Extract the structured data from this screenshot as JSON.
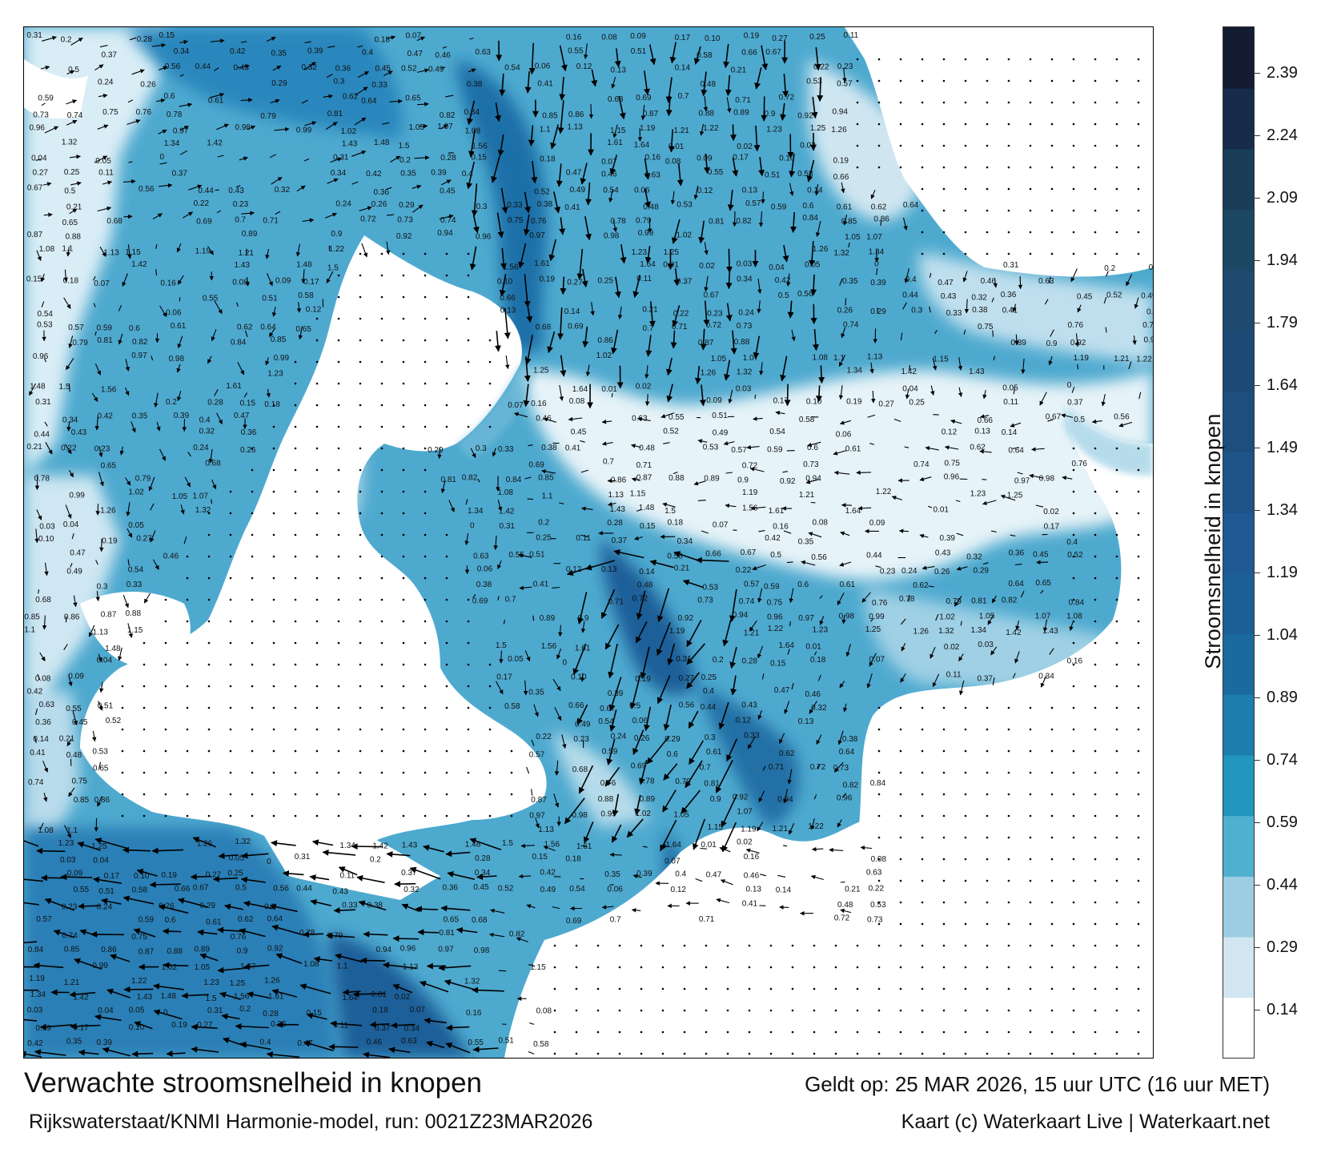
{
  "title": "Verwachte stroomsnelheid in knopen",
  "subtitle": "Rijkswaterstaat/KNMI Harmonie-model, run: 0021Z23MAR2026",
  "valid_time": "Geldt op: 25 MAR 2026, 15 uur UTC (16 uur MET)",
  "credit": "Kaart (c) Waterkaart Live | Waterkaart.net",
  "colorbar": {
    "label": "Stroomsnelheid in knopen",
    "ticks": [
      "2.39",
      "2.24",
      "2.09",
      "1.94",
      "1.79",
      "1.64",
      "1.49",
      "1.34",
      "1.19",
      "1.04",
      "0.89",
      "0.74",
      "0.59",
      "0.44",
      "0.29",
      "0.14"
    ],
    "colors": [
      "#ffffff",
      "#d2e6f1",
      "#9ccde2",
      "#4fb0d0",
      "#2296bf",
      "#1c7eae",
      "#1a6aa0",
      "#1c5f96",
      "#1f5a92",
      "#1e5487",
      "#1d4e7e",
      "#1c4a77",
      "#1d4a6e",
      "#1c4863",
      "#1a3d5a",
      "#172c4b",
      "#141c33"
    ]
  },
  "map": {
    "background_land": "#ffffff",
    "arrow_color": "#000000",
    "speed_labels": [
      {
        "v": "0.31"
      },
      {
        "v": "0.2"
      },
      {
        "v": "0.28"
      },
      {
        "v": "0.15"
      },
      {
        "v": "0.18"
      },
      {
        "v": "0.07"
      },
      {
        "v": "0.16"
      },
      {
        "v": "0.08"
      },
      {
        "v": "0.09"
      },
      {
        "v": "0.17"
      },
      {
        "v": "0.10"
      },
      {
        "v": "0.19"
      },
      {
        "v": "0.27"
      },
      {
        "v": "0.25"
      },
      {
        "v": "0.11"
      },
      {
        "v": "0.37"
      },
      {
        "v": "0.34"
      },
      {
        "v": "0.42"
      },
      {
        "v": "0.35"
      },
      {
        "v": "0.39"
      },
      {
        "v": "0.4"
      },
      {
        "v": "0.47"
      },
      {
        "v": "0.46"
      },
      {
        "v": "0.63"
      },
      {
        "v": "0.55"
      },
      {
        "v": "0.51"
      },
      {
        "v": "0.58"
      },
      {
        "v": "0.66"
      },
      {
        "v": "0.67"
      },
      {
        "v": "0.5"
      },
      {
        "v": "0.56"
      },
      {
        "v": "0.44"
      },
      {
        "v": "0.43"
      },
      {
        "v": "0.32"
      },
      {
        "v": "0.36"
      },
      {
        "v": "0.45"
      },
      {
        "v": "0.52"
      },
      {
        "v": "0.49"
      },
      {
        "v": "0.54"
      },
      {
        "v": "0.06"
      },
      {
        "v": "0.12"
      },
      {
        "v": "0.13"
      },
      {
        "v": "0.14"
      },
      {
        "v": "0.21"
      },
      {
        "v": "0.22"
      },
      {
        "v": "0.23"
      },
      {
        "v": "0.24"
      },
      {
        "v": "0.26"
      },
      {
        "v": "0.29"
      },
      {
        "v": "0.3"
      },
      {
        "v": "0.33"
      },
      {
        "v": "0.38"
      },
      {
        "v": "0.41"
      },
      {
        "v": "0.48"
      },
      {
        "v": "0.53"
      },
      {
        "v": "0.57"
      },
      {
        "v": "0.59"
      },
      {
        "v": "0.6"
      },
      {
        "v": "0.61"
      },
      {
        "v": "0.62"
      },
      {
        "v": "0.64"
      },
      {
        "v": "0.65"
      },
      {
        "v": "0.68"
      },
      {
        "v": "0.69"
      },
      {
        "v": "0.7"
      },
      {
        "v": "0.71"
      },
      {
        "v": "0.72"
      },
      {
        "v": "0.73"
      },
      {
        "v": "0.74"
      },
      {
        "v": "0.75"
      },
      {
        "v": "0.76"
      },
      {
        "v": "0.78"
      },
      {
        "v": "0.79"
      },
      {
        "v": "0.81"
      },
      {
        "v": "0.82"
      },
      {
        "v": "0.84"
      },
      {
        "v": "0.85"
      },
      {
        "v": "0.86"
      },
      {
        "v": "0.87"
      },
      {
        "v": "0.88"
      },
      {
        "v": "0.89"
      },
      {
        "v": "0.9"
      },
      {
        "v": "0.92"
      },
      {
        "v": "0.94"
      },
      {
        "v": "0.96"
      },
      {
        "v": "0.97"
      },
      {
        "v": "0.98"
      },
      {
        "v": "0.99"
      },
      {
        "v": "1.02"
      },
      {
        "v": "1.05"
      },
      {
        "v": "1.07"
      },
      {
        "v": "1.08"
      },
      {
        "v": "1.1"
      },
      {
        "v": "1.13"
      },
      {
        "v": "1.15"
      },
      {
        "v": "1.19"
      },
      {
        "v": "1.21"
      },
      {
        "v": "1.22"
      },
      {
        "v": "1.23"
      },
      {
        "v": "1.25"
      },
      {
        "v": "1.26"
      },
      {
        "v": "1.32"
      },
      {
        "v": "1.34"
      },
      {
        "v": "1.42"
      },
      {
        "v": "1.43"
      },
      {
        "v": "1.48"
      },
      {
        "v": "1.5"
      },
      {
        "v": "1.56"
      },
      {
        "v": "1.61"
      },
      {
        "v": "1.64"
      },
      {
        "v": "0.01"
      },
      {
        "v": "0.02"
      },
      {
        "v": "0.03"
      },
      {
        "v": "0.04"
      },
      {
        "v": "0.05"
      },
      {
        "v": "0"
      }
    ]
  }
}
